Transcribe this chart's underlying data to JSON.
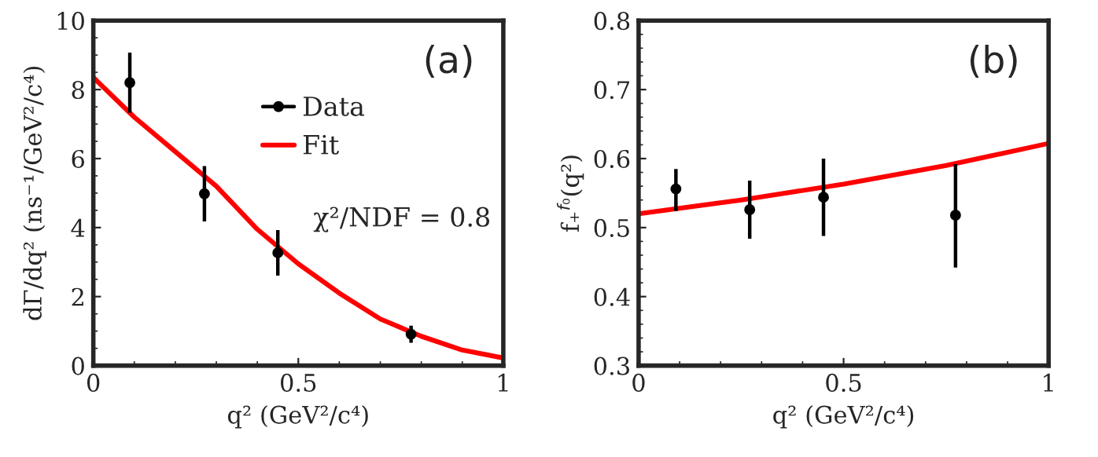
{
  "chart_data": [
    {
      "type": "scatter",
      "xlabel": "q² (GeV²/c⁴)",
      "ylabel": "dΓ/dq² (ns⁻¹/GeV²/c⁴)",
      "xlim": [
        0,
        1
      ],
      "ylim": [
        0,
        10
      ],
      "xticks": [
        0,
        0.5,
        1
      ],
      "yticks": [
        0,
        2,
        4,
        6,
        8,
        10
      ],
      "legend": "top right",
      "annotations": [
        "(a)",
        "χ²/NDF = 0.8"
      ],
      "series": [
        {
          "name": "Data",
          "marker": "circle",
          "color": "#000000",
          "x": [
            0.089,
            0.271,
            0.45,
            0.775
          ],
          "values": [
            8.2,
            4.98,
            3.27,
            0.91
          ],
          "errors": [
            0.87,
            0.8,
            0.66,
            0.25
          ]
        },
        {
          "name": "Fit",
          "type": "line",
          "color": "#ff0000",
          "x": [
            0,
            0.1,
            0.2,
            0.3,
            0.4,
            0.5,
            0.6,
            0.7,
            0.8,
            0.9,
            1.0
          ],
          "values": [
            8.35,
            7.2,
            6.2,
            5.2,
            3.95,
            2.95,
            2.1,
            1.35,
            0.85,
            0.45,
            0.22
          ]
        }
      ]
    },
    {
      "type": "scatter",
      "xlabel": "q² (GeV²/c⁴)",
      "ylabel": "f₊$^{f₀}$(q²)",
      "xlim": [
        0,
        1
      ],
      "ylim": [
        0.3,
        0.8
      ],
      "xticks": [
        0,
        0.5,
        1
      ],
      "yticks": [
        0.3,
        0.4,
        0.5,
        0.6,
        0.7,
        0.8
      ],
      "annotations": [
        "(b)"
      ],
      "series": [
        {
          "marker": "circle",
          "color": "#000000",
          "x": [
            0.091,
            0.271,
            0.451,
            0.773
          ],
          "values": [
            0.556,
            0.526,
            0.544,
            0.518
          ],
          "errors": [
            [
              0.524,
              0.585
            ],
            [
              0.484,
              0.568
            ],
            [
              0.488,
              0.6
            ],
            [
              0.442,
              0.592
            ]
          ]
        },
        {
          "type": "line",
          "color": "#ff0000",
          "x": [
            0,
            0.25,
            0.5,
            0.75,
            1.0
          ],
          "values": [
            0.52,
            0.54,
            0.563,
            0.59,
            0.622
          ]
        }
      ]
    }
  ]
}
